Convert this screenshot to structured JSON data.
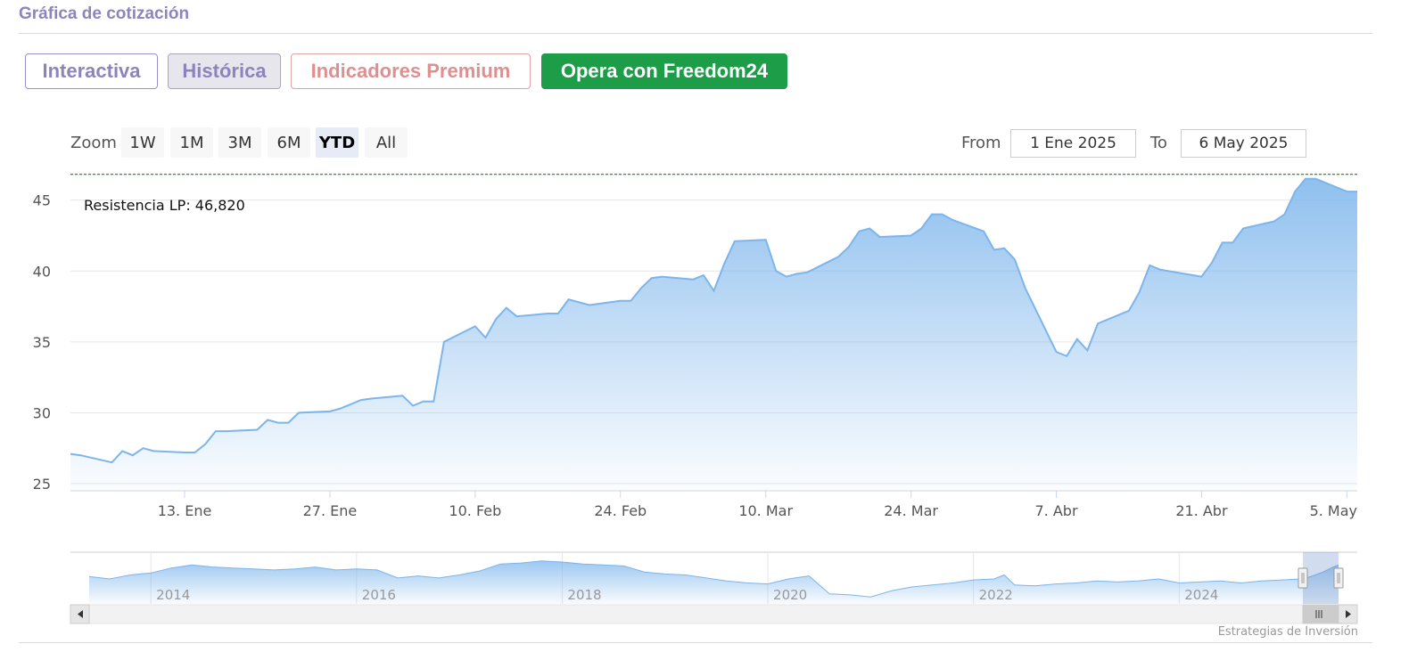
{
  "header": {
    "title": "Gráfica de cotización"
  },
  "tabs": [
    {
      "label": "Interactiva",
      "state": "outline"
    },
    {
      "label": "Histórica",
      "state": "selected"
    },
    {
      "label": "Indicadores Premium",
      "state": "outline-red"
    },
    {
      "label": "Opera con Freedom24",
      "state": "filled-green"
    }
  ],
  "range_selector": {
    "zoom_label": "Zoom",
    "buttons": [
      "1W",
      "1M",
      "3M",
      "6M",
      "YTD",
      "All"
    ],
    "active": "YTD",
    "from_label": "From",
    "from_value": "1 Ene 2025",
    "to_label": "To",
    "to_value": "6 May 2025"
  },
  "colors": {
    "line": "#7cb5ec",
    "resistance_line": "#1a8a1a",
    "active_tab_green": "#1e9d49",
    "title_purple": "#8e84bd"
  },
  "chart_data": {
    "type": "area",
    "resistance": {
      "label": "Resistencia LP: 46,820",
      "value": 46.82
    },
    "y_ticks": [
      "45",
      "40",
      "35",
      "30",
      "25"
    ],
    "ylim": [
      24.5,
      46.8
    ],
    "x_ticks": [
      "13. Ene",
      "27. Ene",
      "10. Feb",
      "24. Feb",
      "10. Mar",
      "24. Mar",
      "7. Abr",
      "21. Abr",
      "5. May"
    ],
    "series": [
      {
        "values": [
          [
            "2025-01-02",
            27.1
          ],
          [
            "2025-01-03",
            27.0
          ],
          [
            "2025-01-06",
            26.5
          ],
          [
            "2025-01-07",
            27.3
          ],
          [
            "2025-01-08",
            27.0
          ],
          [
            "2025-01-09",
            27.5
          ],
          [
            "2025-01-10",
            27.3
          ],
          [
            "2025-01-13",
            27.2
          ],
          [
            "2025-01-14",
            27.2
          ],
          [
            "2025-01-15",
            27.8
          ],
          [
            "2025-01-16",
            28.7
          ],
          [
            "2025-01-17",
            28.7
          ],
          [
            "2025-01-20",
            28.8
          ],
          [
            "2025-01-21",
            29.5
          ],
          [
            "2025-01-22",
            29.3
          ],
          [
            "2025-01-23",
            29.3
          ],
          [
            "2025-01-24",
            30.0
          ],
          [
            "2025-01-27",
            30.1
          ],
          [
            "2025-01-28",
            30.3
          ],
          [
            "2025-01-29",
            30.6
          ],
          [
            "2025-01-30",
            30.9
          ],
          [
            "2025-01-31",
            31.0
          ],
          [
            "2025-02-03",
            31.2
          ],
          [
            "2025-02-04",
            30.5
          ],
          [
            "2025-02-05",
            30.8
          ],
          [
            "2025-02-06",
            30.8
          ],
          [
            "2025-02-07",
            35.0
          ],
          [
            "2025-02-10",
            36.1
          ],
          [
            "2025-02-11",
            35.3
          ],
          [
            "2025-02-12",
            36.6
          ],
          [
            "2025-02-13",
            37.4
          ],
          [
            "2025-02-14",
            36.8
          ],
          [
            "2025-02-17",
            37.0
          ],
          [
            "2025-02-18",
            37.0
          ],
          [
            "2025-02-19",
            38.0
          ],
          [
            "2025-02-20",
            37.8
          ],
          [
            "2025-02-21",
            37.6
          ],
          [
            "2025-02-24",
            37.9
          ],
          [
            "2025-02-25",
            37.9
          ],
          [
            "2025-02-26",
            38.8
          ],
          [
            "2025-02-27",
            39.5
          ],
          [
            "2025-02-28",
            39.6
          ],
          [
            "2025-03-03",
            39.4
          ],
          [
            "2025-03-04",
            39.7
          ],
          [
            "2025-03-05",
            38.6
          ],
          [
            "2025-03-06",
            40.5
          ],
          [
            "2025-03-07",
            42.1
          ],
          [
            "2025-03-10",
            42.2
          ],
          [
            "2025-03-11",
            40.0
          ],
          [
            "2025-03-12",
            39.6
          ],
          [
            "2025-03-13",
            39.8
          ],
          [
            "2025-03-14",
            39.9
          ],
          [
            "2025-03-17",
            41.0
          ],
          [
            "2025-03-18",
            41.7
          ],
          [
            "2025-03-19",
            42.8
          ],
          [
            "2025-03-20",
            43.0
          ],
          [
            "2025-03-21",
            42.4
          ],
          [
            "2025-03-24",
            42.5
          ],
          [
            "2025-03-25",
            43.0
          ],
          [
            "2025-03-26",
            44.0
          ],
          [
            "2025-03-27",
            44.0
          ],
          [
            "2025-03-28",
            43.6
          ],
          [
            "2025-03-31",
            42.8
          ],
          [
            "2025-04-01",
            41.5
          ],
          [
            "2025-04-02",
            41.6
          ],
          [
            "2025-04-03",
            40.8
          ],
          [
            "2025-04-04",
            38.8
          ],
          [
            "2025-04-07",
            34.3
          ],
          [
            "2025-04-08",
            34.0
          ],
          [
            "2025-04-09",
            35.2
          ],
          [
            "2025-04-10",
            34.4
          ],
          [
            "2025-04-11",
            36.3
          ],
          [
            "2025-04-14",
            37.2
          ],
          [
            "2025-04-15",
            38.5
          ],
          [
            "2025-04-16",
            40.4
          ],
          [
            "2025-04-17",
            40.1
          ],
          [
            "2025-04-21",
            39.6
          ],
          [
            "2025-04-22",
            40.6
          ],
          [
            "2025-04-23",
            42.0
          ],
          [
            "2025-04-24",
            42.0
          ],
          [
            "2025-04-25",
            43.0
          ],
          [
            "2025-04-28",
            43.5
          ],
          [
            "2025-04-29",
            44.0
          ],
          [
            "2025-04-30",
            45.6
          ],
          [
            "2025-05-01",
            46.5
          ],
          [
            "2025-05-02",
            46.5
          ],
          [
            "2025-05-05",
            45.6
          ],
          [
            "2025-05-06",
            45.6
          ]
        ]
      }
    ],
    "navigator": {
      "x_ticks": [
        "2014",
        "2016",
        "2018",
        "2020",
        "2022",
        "2024"
      ],
      "values": [
        [
          2013.2,
          0.55
        ],
        [
          2013.4,
          0.5
        ],
        [
          2013.6,
          0.58
        ],
        [
          2013.8,
          0.62
        ],
        [
          2014.0,
          0.72
        ],
        [
          2014.2,
          0.78
        ],
        [
          2014.4,
          0.74
        ],
        [
          2014.6,
          0.72
        ],
        [
          2014.8,
          0.7
        ],
        [
          2015.0,
          0.68
        ],
        [
          2015.2,
          0.7
        ],
        [
          2015.4,
          0.74
        ],
        [
          2015.6,
          0.68
        ],
        [
          2015.8,
          0.7
        ],
        [
          2016.0,
          0.68
        ],
        [
          2016.2,
          0.52
        ],
        [
          2016.4,
          0.56
        ],
        [
          2016.6,
          0.52
        ],
        [
          2016.8,
          0.58
        ],
        [
          2017.0,
          0.66
        ],
        [
          2017.2,
          0.8
        ],
        [
          2017.4,
          0.82
        ],
        [
          2017.6,
          0.86
        ],
        [
          2017.8,
          0.84
        ],
        [
          2018.0,
          0.8
        ],
        [
          2018.2,
          0.78
        ],
        [
          2018.4,
          0.76
        ],
        [
          2018.6,
          0.64
        ],
        [
          2018.8,
          0.6
        ],
        [
          2019.0,
          0.58
        ],
        [
          2019.2,
          0.52
        ],
        [
          2019.4,
          0.46
        ],
        [
          2019.6,
          0.42
        ],
        [
          2019.8,
          0.4
        ],
        [
          2020.0,
          0.5
        ],
        [
          2020.2,
          0.56
        ],
        [
          2020.4,
          0.2
        ],
        [
          2020.6,
          0.18
        ],
        [
          2020.8,
          0.14
        ],
        [
          2021.0,
          0.26
        ],
        [
          2021.2,
          0.34
        ],
        [
          2021.4,
          0.38
        ],
        [
          2021.6,
          0.42
        ],
        [
          2021.8,
          0.48
        ],
        [
          2022.0,
          0.5
        ],
        [
          2022.1,
          0.58
        ],
        [
          2022.2,
          0.38
        ],
        [
          2022.4,
          0.36
        ],
        [
          2022.6,
          0.4
        ],
        [
          2022.8,
          0.42
        ],
        [
          2023.0,
          0.46
        ],
        [
          2023.2,
          0.44
        ],
        [
          2023.4,
          0.46
        ],
        [
          2023.6,
          0.5
        ],
        [
          2023.8,
          0.42
        ],
        [
          2024.0,
          0.44
        ],
        [
          2024.2,
          0.46
        ],
        [
          2024.4,
          0.42
        ],
        [
          2024.6,
          0.46
        ],
        [
          2024.8,
          0.48
        ],
        [
          2025.0,
          0.5
        ],
        [
          2025.1,
          0.56
        ],
        [
          2025.2,
          0.64
        ],
        [
          2025.3,
          0.74
        ],
        [
          2025.35,
          0.78
        ]
      ]
    }
  },
  "credits": "Estrategias de Inversión"
}
